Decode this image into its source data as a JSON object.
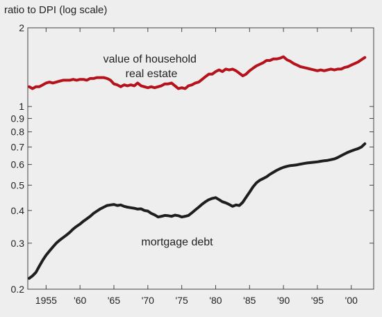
{
  "chart_data": {
    "type": "line",
    "title": "",
    "ylabel": "ratio to DPI (log scale)",
    "xlabel": "",
    "y_scale": "log",
    "ylim": [
      0.2,
      2.0
    ],
    "xlim": [
      1952.3,
      2003.3
    ],
    "grid": false,
    "legend": "none",
    "y_ticks": [
      {
        "value": 2,
        "label": "2"
      },
      {
        "value": 1,
        "label": "1"
      },
      {
        "value": 0.9,
        "label": "0.9"
      },
      {
        "value": 0.8,
        "label": "0.8"
      },
      {
        "value": 0.7,
        "label": "0.7"
      },
      {
        "value": 0.6,
        "label": "0.6"
      },
      {
        "value": 0.5,
        "label": "0.5"
      },
      {
        "value": 0.4,
        "label": "0.4"
      },
      {
        "value": 0.3,
        "label": "0.3"
      },
      {
        "value": 0.2,
        "label": "0.2"
      }
    ],
    "x_ticks": [
      {
        "value": 1955,
        "label": "1955"
      },
      {
        "value": 1960,
        "label": "'60"
      },
      {
        "value": 1965,
        "label": "'65"
      },
      {
        "value": 1970,
        "label": "'70"
      },
      {
        "value": 1975,
        "label": "'75"
      },
      {
        "value": 1980,
        "label": "'80"
      },
      {
        "value": 1985,
        "label": "'85"
      },
      {
        "value": 1990,
        "label": "'90"
      },
      {
        "value": 1995,
        "label": "'95"
      },
      {
        "value": 2000,
        "label": "'00"
      }
    ],
    "annotations": [
      {
        "series": "household_real_estate",
        "lines": [
          "value of household",
          "real estate"
        ]
      },
      {
        "series": "mortgage_debt",
        "lines": [
          "mortgage debt"
        ]
      }
    ],
    "series": [
      {
        "id": "household_real_estate",
        "color": "#b5121b",
        "x": [
          1952.5,
          1953,
          1953.5,
          1954,
          1954.5,
          1955,
          1955.5,
          1956,
          1956.5,
          1957,
          1957.5,
          1958,
          1958.5,
          1959,
          1959.5,
          1960,
          1960.5,
          1961,
          1961.5,
          1962,
          1962.5,
          1963,
          1963.5,
          1964,
          1964.5,
          1965,
          1965.5,
          1966,
          1966.5,
          1967,
          1967.5,
          1968,
          1968.5,
          1969,
          1969.5,
          1970,
          1970.5,
          1971,
          1971.5,
          1972,
          1972.5,
          1973,
          1973.5,
          1974,
          1974.5,
          1975,
          1975.5,
          1976,
          1976.5,
          1977,
          1977.5,
          1978,
          1978.5,
          1979,
          1979.5,
          1980,
          1980.5,
          1981,
          1981.5,
          1982,
          1982.5,
          1983,
          1983.5,
          1984,
          1984.5,
          1985,
          1985.5,
          1986,
          1986.5,
          1987,
          1987.5,
          1988,
          1988.5,
          1989,
          1989.5,
          1990,
          1990.5,
          1991,
          1991.5,
          1992,
          1992.5,
          1993,
          1993.5,
          1994,
          1994.5,
          1995,
          1995.5,
          1996,
          1996.5,
          1997,
          1997.5,
          1998,
          1998.5,
          1999,
          1999.5,
          2000,
          2000.5,
          2001,
          2001.5,
          2002
        ],
        "values": [
          1.19,
          1.17,
          1.19,
          1.19,
          1.21,
          1.23,
          1.24,
          1.23,
          1.24,
          1.25,
          1.26,
          1.26,
          1.26,
          1.27,
          1.26,
          1.27,
          1.27,
          1.26,
          1.28,
          1.28,
          1.29,
          1.29,
          1.29,
          1.28,
          1.26,
          1.22,
          1.21,
          1.19,
          1.21,
          1.2,
          1.21,
          1.2,
          1.23,
          1.2,
          1.19,
          1.18,
          1.19,
          1.18,
          1.19,
          1.2,
          1.22,
          1.22,
          1.23,
          1.2,
          1.17,
          1.18,
          1.17,
          1.2,
          1.21,
          1.23,
          1.24,
          1.27,
          1.3,
          1.33,
          1.33,
          1.36,
          1.38,
          1.36,
          1.39,
          1.38,
          1.39,
          1.37,
          1.34,
          1.31,
          1.33,
          1.37,
          1.4,
          1.43,
          1.45,
          1.47,
          1.5,
          1.5,
          1.52,
          1.52,
          1.53,
          1.55,
          1.51,
          1.49,
          1.46,
          1.44,
          1.42,
          1.41,
          1.4,
          1.39,
          1.38,
          1.37,
          1.38,
          1.37,
          1.38,
          1.39,
          1.38,
          1.39,
          1.39,
          1.41,
          1.42,
          1.44,
          1.46,
          1.48,
          1.51,
          1.54
        ]
      },
      {
        "id": "mortgage_debt",
        "color": "#1e1e1e",
        "x": [
          1952.5,
          1953,
          1953.5,
          1954,
          1954.5,
          1955,
          1955.5,
          1956,
          1956.5,
          1957,
          1957.5,
          1958,
          1958.5,
          1959,
          1959.5,
          1960,
          1960.5,
          1961,
          1961.5,
          1962,
          1962.5,
          1963,
          1963.5,
          1964,
          1964.5,
          1965,
          1965.5,
          1966,
          1966.5,
          1967,
          1967.5,
          1968,
          1968.5,
          1969,
          1969.5,
          1970,
          1970.5,
          1971,
          1971.5,
          1972,
          1972.5,
          1973,
          1973.5,
          1974,
          1974.5,
          1975,
          1975.5,
          1976,
          1976.5,
          1977,
          1977.5,
          1978,
          1978.5,
          1979,
          1979.5,
          1980,
          1980.5,
          1981,
          1981.5,
          1982,
          1982.5,
          1983,
          1983.5,
          1984,
          1984.5,
          1985,
          1985.5,
          1986,
          1986.5,
          1987,
          1987.5,
          1988,
          1988.5,
          1989,
          1989.5,
          1990,
          1990.5,
          1991,
          1991.5,
          1992,
          1992.5,
          1993,
          1993.5,
          1994,
          1994.5,
          1995,
          1995.5,
          1996,
          1996.5,
          1997,
          1997.5,
          1998,
          1998.5,
          1999,
          1999.5,
          2000,
          2000.5,
          2001,
          2001.5,
          2002
        ],
        "values": [
          0.22,
          0.225,
          0.232,
          0.245,
          0.258,
          0.27,
          0.28,
          0.29,
          0.3,
          0.308,
          0.315,
          0.322,
          0.33,
          0.34,
          0.348,
          0.355,
          0.364,
          0.372,
          0.38,
          0.39,
          0.398,
          0.406,
          0.412,
          0.418,
          0.42,
          0.422,
          0.418,
          0.42,
          0.415,
          0.412,
          0.41,
          0.408,
          0.405,
          0.406,
          0.4,
          0.398,
          0.39,
          0.385,
          0.378,
          0.38,
          0.383,
          0.382,
          0.38,
          0.384,
          0.382,
          0.378,
          0.38,
          0.383,
          0.392,
          0.402,
          0.412,
          0.423,
          0.432,
          0.44,
          0.445,
          0.448,
          0.44,
          0.432,
          0.428,
          0.422,
          0.415,
          0.42,
          0.418,
          0.43,
          0.45,
          0.47,
          0.492,
          0.51,
          0.522,
          0.53,
          0.538,
          0.55,
          0.56,
          0.57,
          0.578,
          0.585,
          0.59,
          0.594,
          0.596,
          0.598,
          0.602,
          0.605,
          0.608,
          0.61,
          0.612,
          0.614,
          0.617,
          0.62,
          0.622,
          0.626,
          0.63,
          0.638,
          0.648,
          0.658,
          0.668,
          0.676,
          0.683,
          0.69,
          0.7,
          0.72
        ]
      }
    ]
  }
}
